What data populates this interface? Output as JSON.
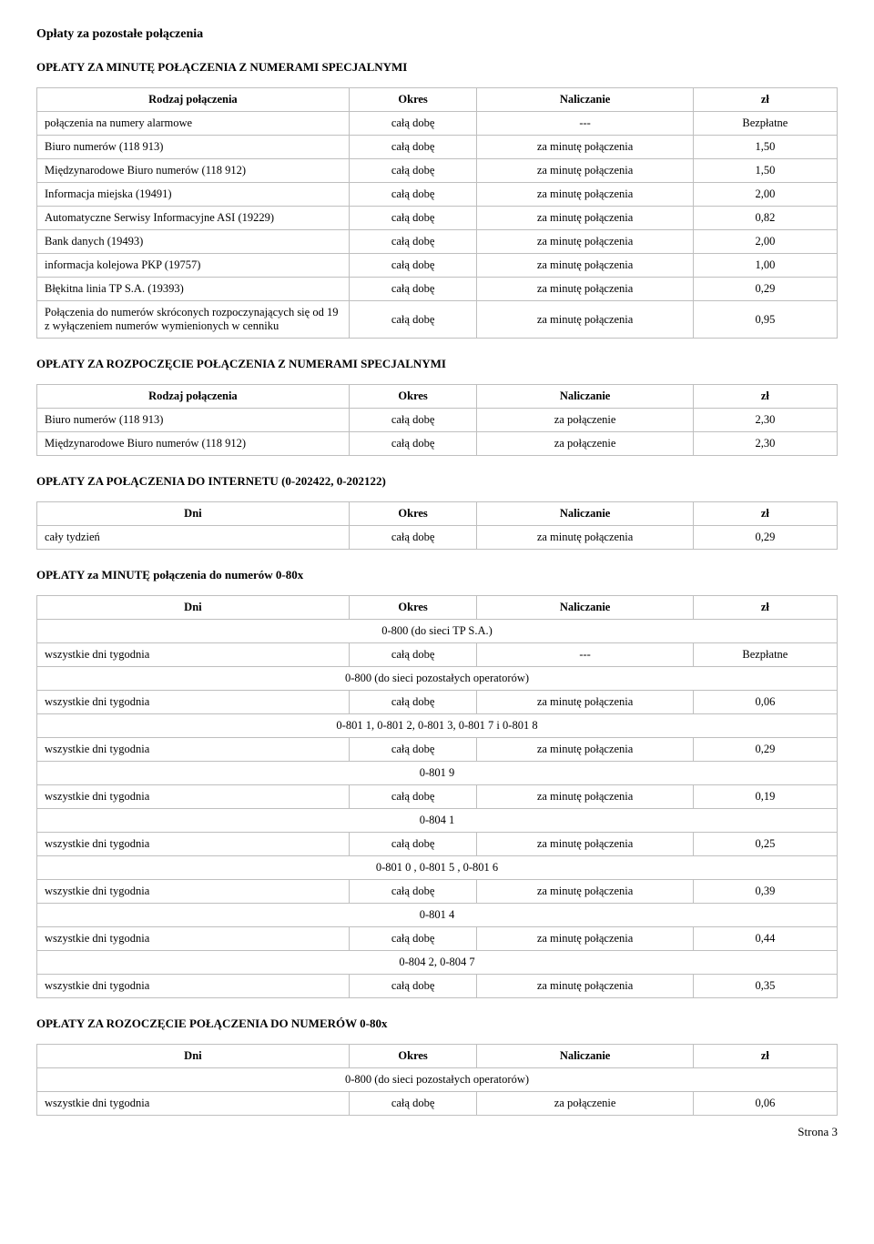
{
  "title": "Opłaty za pozostałe połączenia",
  "section1": {
    "heading": "OPŁATY ZA MINUTĘ POŁĄCZENIA Z NUMERAMI SPECJALNYMI",
    "headers": {
      "c1": "Rodzaj połączenia",
      "c2": "Okres",
      "c3": "Naliczanie",
      "c4": "zł"
    },
    "rows": [
      {
        "c1": "połączenia na numery alarmowe",
        "c2": "całą dobę",
        "c3": "---",
        "c4": "Bezpłatne"
      },
      {
        "c1": "Biuro numerów (118 913)",
        "c2": "całą dobę",
        "c3": "za minutę połączenia",
        "c4": "1,50"
      },
      {
        "c1": "Międzynarodowe Biuro numerów (118 912)",
        "c2": "całą dobę",
        "c3": "za minutę połączenia",
        "c4": "1,50"
      },
      {
        "c1": "Informacja miejska (19491)",
        "c2": "całą dobę",
        "c3": "za minutę połączenia",
        "c4": "2,00"
      },
      {
        "c1": "Automatyczne Serwisy Informacyjne ASI (19229)",
        "c2": "całą dobę",
        "c3": "za minutę połączenia",
        "c4": "0,82"
      },
      {
        "c1": "Bank danych (19493)",
        "c2": "całą dobę",
        "c3": "za minutę połączenia",
        "c4": "2,00"
      },
      {
        "c1": "informacja kolejowa PKP (19757)",
        "c2": "całą dobę",
        "c3": "za minutę połączenia",
        "c4": "1,00"
      },
      {
        "c1": "Błękitna linia TP S.A. (19393)",
        "c2": "całą dobę",
        "c3": "za minutę połączenia",
        "c4": "0,29"
      },
      {
        "c1": "Połączenia do numerów skróconych rozpoczynających się od 19 z wyłączeniem numerów wymienionych w cenniku",
        "c2": "całą dobę",
        "c3": "za minutę połączenia",
        "c4": "0,95"
      }
    ]
  },
  "section2": {
    "heading": "OPŁATY ZA ROZPOCZĘCIE POŁĄCZENIA Z NUMERAMI SPECJALNYMI",
    "headers": {
      "c1": "Rodzaj połączenia",
      "c2": "Okres",
      "c3": "Naliczanie",
      "c4": "zł"
    },
    "rows": [
      {
        "c1": "Biuro numerów (118 913)",
        "c2": "całą dobę",
        "c3": "za połączenie",
        "c4": "2,30"
      },
      {
        "c1": "Międzynarodowe Biuro numerów (118 912)",
        "c2": "całą dobę",
        "c3": "za połączenie",
        "c4": "2,30"
      }
    ]
  },
  "section3": {
    "heading": "OPŁATY ZA POŁĄCZENIA DO INTERNETU (0-202422, 0-202122)",
    "headers": {
      "c1": "Dni",
      "c2": "Okres",
      "c3": "Naliczanie",
      "c4": "zł"
    },
    "rows": [
      {
        "c1": "cały tydzień",
        "c2": "całą dobę",
        "c3": "za minutę połączenia",
        "c4": "0,29"
      }
    ]
  },
  "section4": {
    "heading": "OPŁATY za MINUTĘ połączenia do numerów 0-80x",
    "headers": {
      "c1": "Dni",
      "c2": "Okres",
      "c3": "Naliczanie",
      "c4": "zł"
    },
    "groups": [
      {
        "label": "0-800 (do sieci TP S.A.)",
        "rows": [
          {
            "c1": "wszystkie dni tygodnia",
            "c2": "całą dobę",
            "c3": "---",
            "c4": "Bezpłatne"
          }
        ]
      },
      {
        "label": "0-800 (do sieci pozostałych operatorów)",
        "rows": [
          {
            "c1": "wszystkie dni tygodnia",
            "c2": "całą dobę",
            "c3": "za minutę połączenia",
            "c4": "0,06"
          }
        ]
      },
      {
        "label": "0-801 1, 0-801 2, 0-801 3, 0-801 7 i 0-801 8",
        "rows": [
          {
            "c1": "wszystkie dni tygodnia",
            "c2": "całą dobę",
            "c3": "za minutę połączenia",
            "c4": "0,29"
          }
        ]
      },
      {
        "label": "0-801 9",
        "rows": [
          {
            "c1": "wszystkie dni tygodnia",
            "c2": "całą dobę",
            "c3": "za minutę połączenia",
            "c4": "0,19"
          }
        ]
      },
      {
        "label": "0-804 1",
        "rows": [
          {
            "c1": "wszystkie dni tygodnia",
            "c2": "całą dobę",
            "c3": "za minutę połączenia",
            "c4": "0,25"
          }
        ]
      },
      {
        "label": "0-801 0 , 0-801 5 , 0-801 6",
        "rows": [
          {
            "c1": "wszystkie dni tygodnia",
            "c2": "całą dobę",
            "c3": "za minutę połączenia",
            "c4": "0,39"
          }
        ]
      },
      {
        "label": "0-801 4",
        "rows": [
          {
            "c1": "wszystkie dni tygodnia",
            "c2": "całą dobę",
            "c3": "za minutę połączenia",
            "c4": "0,44"
          }
        ]
      },
      {
        "label": "0-804 2, 0-804 7",
        "rows": [
          {
            "c1": "wszystkie dni tygodnia",
            "c2": "całą dobę",
            "c3": "za minutę połączenia",
            "c4": "0,35"
          }
        ]
      }
    ]
  },
  "section5": {
    "heading": "OPŁATY ZA ROZOCZĘCIE POŁĄCZENIA DO NUMERÓW 0-80x",
    "headers": {
      "c1": "Dni",
      "c2": "Okres",
      "c3": "Naliczanie",
      "c4": "zł"
    },
    "groups": [
      {
        "label": "0-800 (do sieci pozostałych operatorów)",
        "rows": [
          {
            "c1": "wszystkie dni tygodnia",
            "c2": "całą dobę",
            "c3": "za połączenie",
            "c4": "0,06"
          }
        ]
      }
    ]
  },
  "footer": "Strona 3"
}
